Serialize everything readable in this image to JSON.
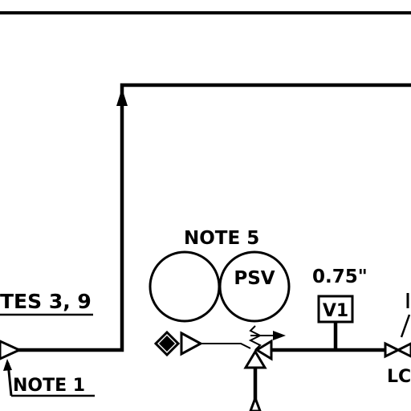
{
  "labels": {
    "note5": "NOTE 5",
    "psv": "PSV",
    "size": "0.75\"",
    "v1": "V1",
    "notes39": "TES 3, 9",
    "note1": "NOTE 1",
    "lc": "LC"
  }
}
